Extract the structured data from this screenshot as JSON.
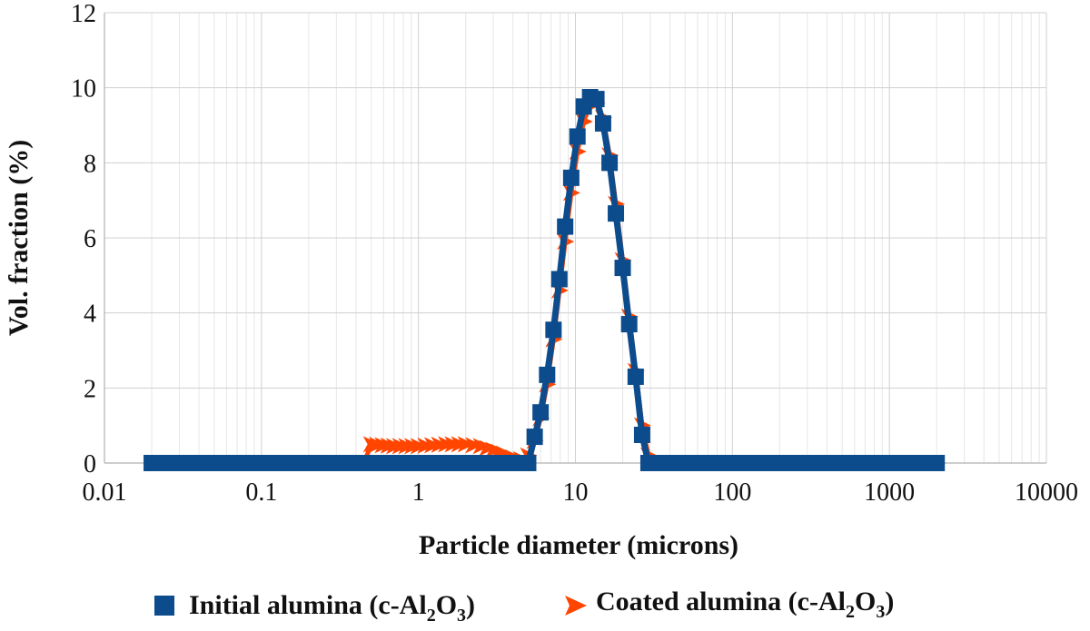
{
  "chart_data": {
    "type": "line",
    "xlabel": "Particle diameter (microns)",
    "ylabel": "Vol. fraction (%)",
    "x_scale": "log",
    "xlim": [
      0.01,
      10000
    ],
    "ylim": [
      0,
      12
    ],
    "x_ticks": [
      "0.01",
      "0.1",
      "1",
      "10",
      "100",
      "1000",
      "10000"
    ],
    "y_ticks": [
      "0",
      "2",
      "4",
      "6",
      "8",
      "10",
      "12"
    ],
    "grid": true,
    "legend_position": "bottom",
    "series": [
      {
        "name_parts": [
          "Initial alumina (c-Al",
          "2",
          "O",
          "3",
          ")"
        ],
        "color": "#0d4c8c",
        "marker": "square",
        "x": [
          0.02,
          0.05,
          0.1,
          0.2,
          0.5,
          1,
          2,
          4,
          5.0,
          5.5,
          6.0,
          6.6,
          7.25,
          7.9,
          8.6,
          9.4,
          10.3,
          11.3,
          12.4,
          13.6,
          15.0,
          16.5,
          18.1,
          20.0,
          22.0,
          24.2,
          26.6,
          29.2,
          32.1,
          35.3,
          38.8,
          42.6,
          100,
          1000,
          2000
        ],
        "y": [
          0,
          0,
          0,
          0,
          0,
          0,
          0,
          0,
          0,
          0.7,
          1.35,
          2.35,
          3.55,
          4.9,
          6.3,
          7.6,
          8.7,
          9.5,
          9.75,
          9.7,
          9.05,
          8.0,
          6.65,
          5.2,
          3.7,
          2.3,
          0.75,
          0,
          0,
          0,
          0,
          0,
          0,
          0,
          0
        ],
        "note": ""
      },
      {
        "name_parts": [
          "Coated alumina (c-Al",
          "2",
          "O",
          "3",
          ")"
        ],
        "color": "#ff4500",
        "marker": "triangle-right",
        "x": [
          0.02,
          0.05,
          0.1,
          0.2,
          0.45,
          0.5,
          0.7,
          1.0,
          1.5,
          2.0,
          2.5,
          3.0,
          3.5,
          4.0,
          4.5,
          5.0,
          5.5,
          6.0,
          6.6,
          7.25,
          7.9,
          8.6,
          9.4,
          10.3,
          11.3,
          12.4,
          13.6,
          15.0,
          16.5,
          18.1,
          20.0,
          22.0,
          24.2,
          26.6,
          29.2,
          32.1,
          35.3,
          38.8,
          42.6,
          100,
          1000,
          2000
        ],
        "y": [
          0,
          0,
          0,
          0,
          0,
          0.5,
          0.45,
          0.45,
          0.5,
          0.5,
          0.45,
          0.35,
          0.25,
          0.15,
          0.1,
          0.2,
          0.6,
          1.2,
          2.1,
          3.3,
          4.6,
          5.9,
          7.2,
          8.3,
          9.1,
          9.55,
          9.6,
          9.2,
          8.2,
          6.9,
          5.4,
          3.9,
          2.45,
          1.0,
          0.2,
          0,
          0,
          0,
          0,
          0,
          0,
          0
        ]
      }
    ]
  }
}
